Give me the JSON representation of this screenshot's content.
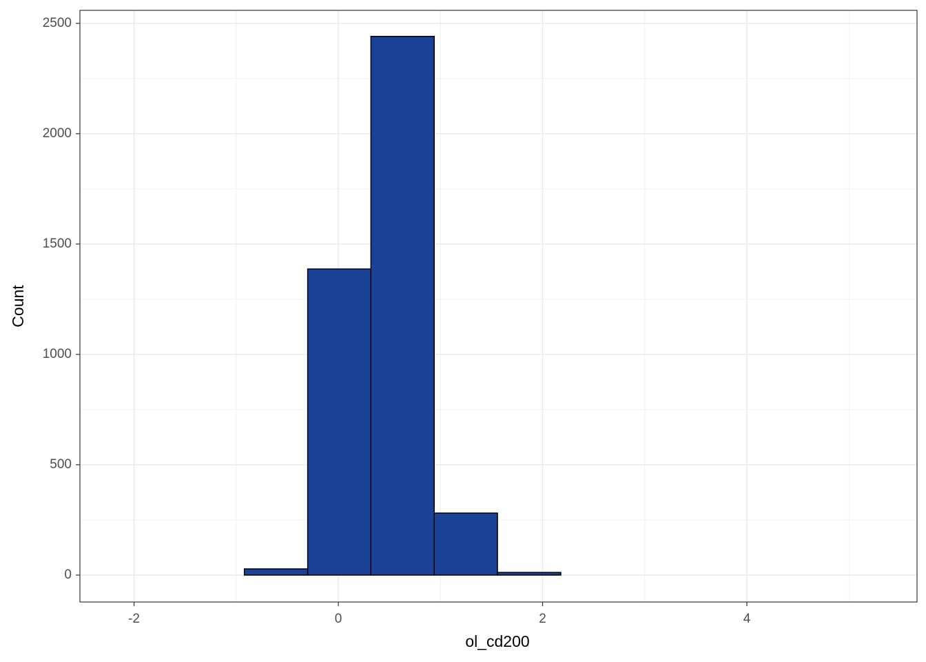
{
  "chart_data": {
    "type": "histogram",
    "x_label": "ol_cd200",
    "y_label": "Count",
    "bins": [
      -2.159,
      -1.539,
      -0.92,
      -0.3,
      0.319,
      0.939,
      1.558,
      2.178,
      2.797,
      3.417,
      4.036,
      4.656,
      5.275
    ],
    "counts": [
      0,
      0,
      28,
      1387,
      2441,
      281,
      12,
      0,
      0,
      0,
      0,
      0
    ],
    "color": "#1a4398",
    "edge_color": "#000000",
    "xlim": [
      -2.53,
      5.666
    ],
    "ylim": [
      -122,
      2559
    ],
    "xticks": [
      -2,
      0,
      2,
      4
    ],
    "yticks": [
      0,
      500,
      1000,
      1500,
      2000,
      2500
    ],
    "minor_xticks": [
      -1,
      1,
      3,
      5
    ],
    "minor_yticks": [
      250,
      750,
      1250,
      1750,
      2250
    ],
    "grid": true
  }
}
